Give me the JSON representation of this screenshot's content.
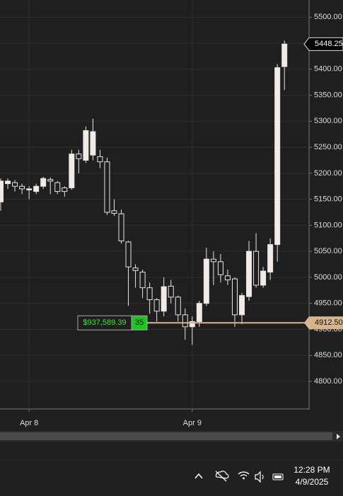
{
  "chart_data": {
    "type": "candlestick",
    "ylim": [
      4747,
      5533
    ],
    "yticks": [
      {
        "value": 5500,
        "label": "5500.00"
      },
      {
        "value": 5450,
        "label": "5450.00"
      },
      {
        "value": 5400,
        "label": "5400.00"
      },
      {
        "value": 5350,
        "label": "5350.00"
      },
      {
        "value": 5300,
        "label": "5300.00"
      },
      {
        "value": 5250,
        "label": "5250.00"
      },
      {
        "value": 5200,
        "label": "5200.00"
      },
      {
        "value": 5150,
        "label": "5150.00"
      },
      {
        "value": 5100,
        "label": "5100.00"
      },
      {
        "value": 5050,
        "label": "5050.00"
      },
      {
        "value": 5000,
        "label": "5000.00"
      },
      {
        "value": 4950,
        "label": "4950.00"
      },
      {
        "value": 4900,
        "label": "4900.00"
      },
      {
        "value": 4850,
        "label": "4850.00"
      },
      {
        "value": 4800,
        "label": "4800.00"
      }
    ],
    "categories": [
      null,
      null,
      null,
      null,
      "Apr 8",
      null,
      null,
      null,
      null,
      null,
      null,
      null,
      null,
      null,
      null,
      null,
      null,
      null,
      null,
      null,
      null,
      null,
      null,
      null,
      null,
      null,
      null,
      "Apr 9",
      null,
      null,
      null,
      null,
      null,
      null,
      null,
      null,
      null,
      null,
      null,
      null,
      null
    ],
    "open": [
      5145,
      5180,
      5182,
      5175,
      5168,
      5165,
      5175,
      5188,
      5182,
      5172,
      5172,
      5237,
      5225,
      5235,
      5232,
      5222,
      5128,
      5122,
      5068,
      5018,
      5010,
      4980,
      4957,
      4935,
      4983,
      4962,
      4928,
      4905,
      4915,
      4950,
      5035,
      5030,
      5003,
      4997,
      4928,
      4963,
      5050,
      4985,
      5010,
      5063,
      5405
    ],
    "high": [
      5190,
      5190,
      5187,
      5180,
      5175,
      5180,
      5193,
      5192,
      5185,
      5175,
      5245,
      5245,
      5290,
      5305,
      5245,
      5230,
      5150,
      5130,
      5070,
      5025,
      5015,
      4990,
      4960,
      5000,
      4995,
      4965,
      4940,
      4925,
      4955,
      5057,
      5050,
      5045,
      5015,
      5000,
      4970,
      5070,
      5085,
      5020,
      5075,
      5410,
      5455
    ],
    "low": [
      5128,
      5170,
      5165,
      5160,
      5150,
      5160,
      5170,
      5160,
      5160,
      5155,
      5168,
      5200,
      5220,
      5225,
      5210,
      5120,
      5118,
      5065,
      4945,
      4980,
      4960,
      4930,
      4915,
      4925,
      4950,
      4915,
      4880,
      4870,
      4905,
      4945,
      4985,
      4990,
      4985,
      4905,
      4910,
      4955,
      4980,
      4980,
      4995,
      5030,
      5360
    ],
    "close": [
      5185,
      5185,
      5175,
      5170,
      5170,
      5175,
      5190,
      5185,
      5165,
      5165,
      5237,
      5228,
      5282,
      5280,
      5222,
      5125,
      5123,
      5070,
      5020,
      5013,
      4980,
      4957,
      4935,
      4982,
      4962,
      4928,
      4905,
      4915,
      4950,
      5035,
      5030,
      5005,
      4995,
      4928,
      4965,
      5050,
      4985,
      5012,
      5063,
      5403,
      5448.25
    ],
    "up_color": "#f3ebe3",
    "down_color": "#1f1f1f",
    "grid": true,
    "last_price": 5448.25,
    "position": {
      "price": {
        "value": 4912.5,
        "label": "4912.50"
      },
      "pnl": "$937,589.39",
      "quantity": 35,
      "color": "#d8b48a"
    }
  },
  "taskbar": {
    "time": "12:28 PM",
    "date": "4/9/2025"
  }
}
